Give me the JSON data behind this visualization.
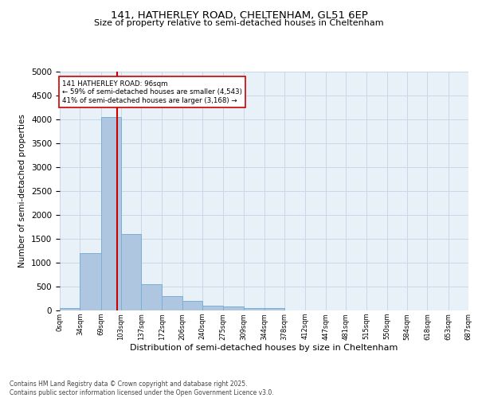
{
  "title1": "141, HATHERLEY ROAD, CHELTENHAM, GL51 6EP",
  "title2": "Size of property relative to semi-detached houses in Cheltenham",
  "xlabel": "Distribution of semi-detached houses by size in Cheltenham",
  "ylabel": "Number of semi-detached properties",
  "bin_edges": [
    0,
    34,
    69,
    103,
    137,
    172,
    206,
    240,
    275,
    309,
    344,
    378,
    412,
    447,
    481,
    515,
    550,
    584,
    618,
    653,
    687
  ],
  "bin_labels": [
    "0sqm",
    "34sqm",
    "69sqm",
    "103sqm",
    "137sqm",
    "172sqm",
    "206sqm",
    "240sqm",
    "275sqm",
    "309sqm",
    "344sqm",
    "378sqm",
    "412sqm",
    "447sqm",
    "481sqm",
    "515sqm",
    "550sqm",
    "584sqm",
    "618sqm",
    "653sqm",
    "687sqm"
  ],
  "bar_heights": [
    50,
    1200,
    4050,
    1600,
    550,
    300,
    200,
    100,
    80,
    50,
    50,
    0,
    0,
    0,
    0,
    0,
    0,
    0,
    0,
    0
  ],
  "bar_color": "#aec6e0",
  "bar_edge_color": "#7bafd4",
  "grid_color": "#c8d8e8",
  "bg_color": "#e8f0f8",
  "property_size": 96,
  "property_line_color": "#cc0000",
  "annotation_line1": "141 HATHERLEY ROAD: 96sqm",
  "annotation_line2": "← 59% of semi-detached houses are smaller (4,543)",
  "annotation_line3": "41% of semi-detached houses are larger (3,168) →",
  "annotation_box_color": "#cc0000",
  "ylim": [
    0,
    5000
  ],
  "yticks": [
    0,
    500,
    1000,
    1500,
    2000,
    2500,
    3000,
    3500,
    4000,
    4500,
    5000
  ],
  "footer": "Contains HM Land Registry data © Crown copyright and database right 2025.\nContains public sector information licensed under the Open Government Licence v3.0."
}
